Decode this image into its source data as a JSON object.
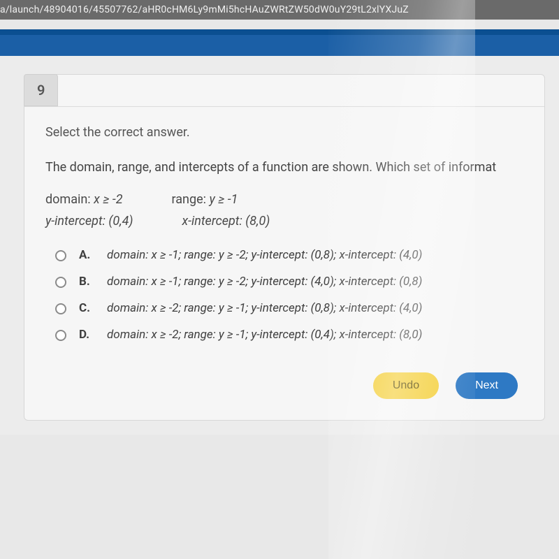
{
  "url": "a/launch/48904016/45507762/aHR0cHM6Ly9mMi5hcHAuZWRtZW50dW0uY29tL2xlYXJuZ",
  "question_number": "9",
  "instruction": "Select the correct answer.",
  "stem": "The domain, range, and intercepts of a function are shown. Which set of informat",
  "given": {
    "domain_label": "domain: ",
    "domain_val": "x ≥ -2",
    "range_label": "range: ",
    "range_val": "y ≥ -1",
    "yint_label": "y-intercept: (0,4)",
    "xint_label": "x-intercept: (8,0)"
  },
  "options": [
    {
      "key": "A.",
      "text": "domain: x ≥ -1; range: y ≥ -2; y-intercept: (0,8); x-intercept: (4,0)"
    },
    {
      "key": "B.",
      "text": "domain: x ≥ -1; range: y ≥ -2; y-intercept: (4,0); x-intercept: (0,8)"
    },
    {
      "key": "C.",
      "text": "domain: x ≥ -2; range: y ≥ -1; y-intercept: (0,8); x-intercept: (4,0)"
    },
    {
      "key": "D.",
      "text": "domain: x ≥ -2; range: y ≥ -1; y-intercept: (0,4); x-intercept: (8,0)"
    }
  ],
  "buttons": {
    "undo": "Undo",
    "next": "Next"
  },
  "colors": {
    "undo_bg": "#f4cf3a",
    "next_bg": "#2e79c4"
  }
}
